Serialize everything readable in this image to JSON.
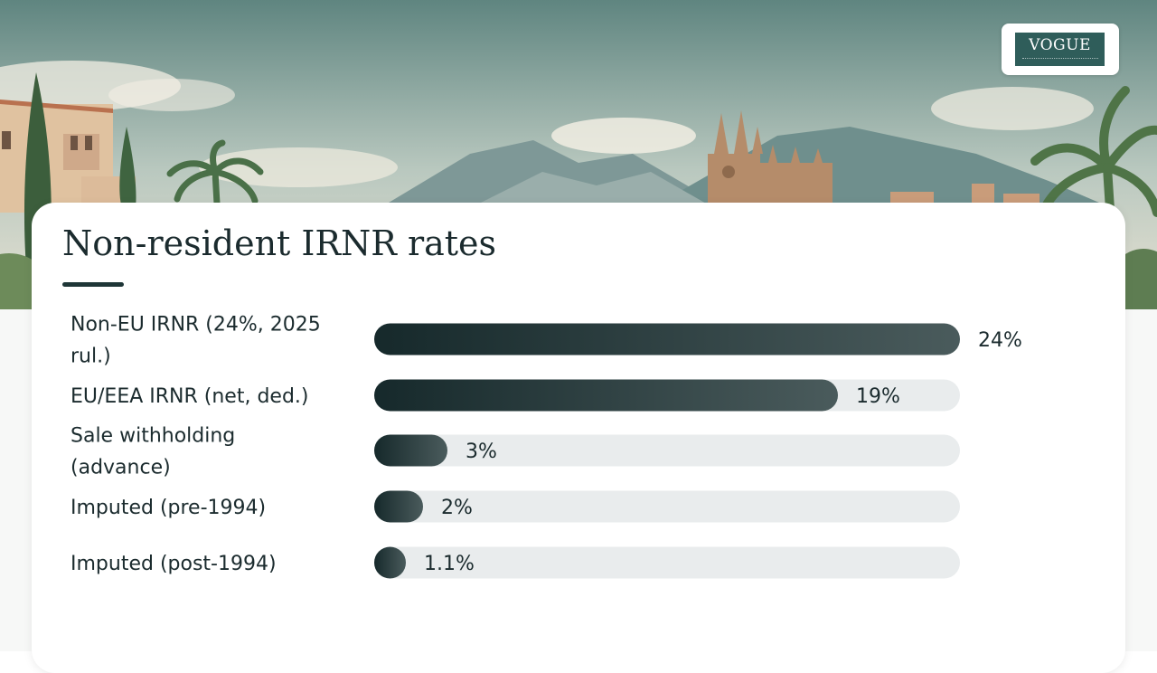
{
  "logo": {
    "text": "VOGUE"
  },
  "chart_data": {
    "type": "bar",
    "orientation": "horizontal",
    "title": "Non-resident IRNR rates",
    "categories": [
      "Non-EU IRNR (24%, 2025 rul.)",
      "EU/EEA IRNR (net, ded.)",
      "Sale withholding (advance)",
      "Imputed (pre-1994)",
      "Imputed (post-1994)"
    ],
    "category_lines": [
      [
        "Non-EU IRNR (24%, 2025",
        "rul.)"
      ],
      [
        "EU/EEA IRNR (net, ded.)"
      ],
      [
        "Sale withholding",
        "(advance)"
      ],
      [
        "Imputed (pre-1994)"
      ],
      [
        "Imputed (post-1994)"
      ]
    ],
    "values": [
      24,
      19,
      3,
      2,
      1.1
    ],
    "value_labels": [
      "24%",
      "19%",
      "3%",
      "2%",
      "1.1%"
    ],
    "xlim": [
      0,
      24
    ],
    "grid": false,
    "colors": {
      "bar_start": "#16292b",
      "bar_end": "#4a5b5c",
      "track": "#e9eced",
      "text": "#1b2b2e"
    }
  }
}
